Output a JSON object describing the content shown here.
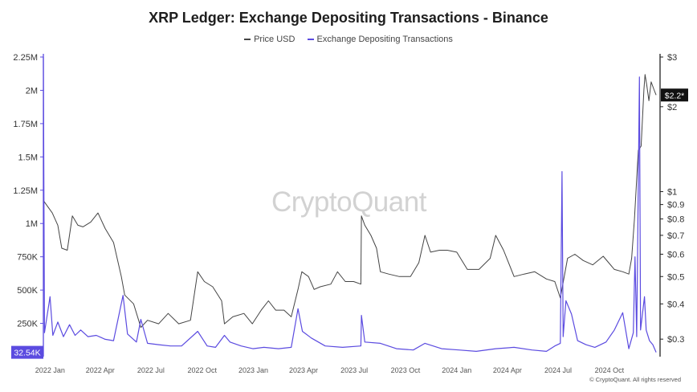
{
  "chart_data": {
    "type": "line",
    "title": "XRP Ledger: Exchange Depositing Transactions - Binance",
    "watermark": "CryptoQuant",
    "copyright": "© CryptoQuant. All rights reserved",
    "legend_position": "top-center",
    "grid": false,
    "x_range": [
      "2021-12-20",
      "2024-12-31"
    ],
    "x_ticks": [
      {
        "date": "2022-01-01",
        "label": "2022 Jan"
      },
      {
        "date": "2022-04-01",
        "label": "2022 Apr"
      },
      {
        "date": "2022-07-01",
        "label": "2022 Jul"
      },
      {
        "date": "2022-10-01",
        "label": "2022 Oct"
      },
      {
        "date": "2023-01-01",
        "label": "2023 Jan"
      },
      {
        "date": "2023-04-01",
        "label": "2023 Apr"
      },
      {
        "date": "2023-07-01",
        "label": "2023 Jul"
      },
      {
        "date": "2023-10-01",
        "label": "2023 Oct"
      },
      {
        "date": "2024-01-01",
        "label": "2024 Jan"
      },
      {
        "date": "2024-04-01",
        "label": "2024 Apr"
      },
      {
        "date": "2024-07-01",
        "label": "2024 Jul"
      },
      {
        "date": "2024-10-01",
        "label": "2024 Oct"
      }
    ],
    "y_left": {
      "range": [
        0,
        2250000
      ],
      "ticks": [
        {
          "value": 250000,
          "label": "250K"
        },
        {
          "value": 500000,
          "label": "500K"
        },
        {
          "value": 750000,
          "label": "750K"
        },
        {
          "value": 1000000,
          "label": "1M"
        },
        {
          "value": 1250000,
          "label": "1.25M"
        },
        {
          "value": 1500000,
          "label": "1.5M"
        },
        {
          "value": 1750000,
          "label": "1.75M"
        },
        {
          "value": 2000000,
          "label": "2M"
        },
        {
          "value": 2250000,
          "label": "2.25M"
        }
      ]
    },
    "y_right": {
      "scale": "log",
      "range": [
        0.26,
        3
      ],
      "ticks": [
        {
          "value": 0.3,
          "label": "$0.3"
        },
        {
          "value": 0.4,
          "label": "$0.4"
        },
        {
          "value": 0.5,
          "label": "$0.5"
        },
        {
          "value": 0.6,
          "label": "$0.6"
        },
        {
          "value": 0.7,
          "label": "$0.7"
        },
        {
          "value": 0.8,
          "label": "$0.8"
        },
        {
          "value": 0.9,
          "label": "$0.9"
        },
        {
          "value": 1,
          "label": "$1"
        },
        {
          "value": 2,
          "label": "$2"
        },
        {
          "value": 3,
          "label": "$3"
        }
      ]
    },
    "badges": {
      "left": {
        "label": "32.54K",
        "value": 32540,
        "color": "#5b4be0"
      },
      "right": {
        "label": "$2.2*",
        "value": 2.2,
        "color": "#111111"
      }
    },
    "series": [
      {
        "name": "Price USD",
        "axis": "right",
        "color": "#444444",
        "points": [
          [
            "2021-12-20",
            0.93
          ],
          [
            "2022-01-05",
            0.84
          ],
          [
            "2022-01-15",
            0.76
          ],
          [
            "2022-01-22",
            0.63
          ],
          [
            "2022-02-01",
            0.62
          ],
          [
            "2022-02-10",
            0.82
          ],
          [
            "2022-02-20",
            0.76
          ],
          [
            "2022-03-01",
            0.75
          ],
          [
            "2022-03-15",
            0.78
          ],
          [
            "2022-03-28",
            0.84
          ],
          [
            "2022-04-10",
            0.74
          ],
          [
            "2022-04-25",
            0.66
          ],
          [
            "2022-05-09",
            0.5
          ],
          [
            "2022-05-15",
            0.43
          ],
          [
            "2022-05-31",
            0.4
          ],
          [
            "2022-06-13",
            0.33
          ],
          [
            "2022-06-25",
            0.35
          ],
          [
            "2022-07-15",
            0.34
          ],
          [
            "2022-08-01",
            0.37
          ],
          [
            "2022-08-20",
            0.34
          ],
          [
            "2022-09-10",
            0.35
          ],
          [
            "2022-09-23",
            0.52
          ],
          [
            "2022-10-05",
            0.48
          ],
          [
            "2022-10-20",
            0.46
          ],
          [
            "2022-11-05",
            0.41
          ],
          [
            "2022-11-10",
            0.34
          ],
          [
            "2022-11-25",
            0.36
          ],
          [
            "2022-12-15",
            0.37
          ],
          [
            "2022-12-30",
            0.34
          ],
          [
            "2023-01-15",
            0.38
          ],
          [
            "2023-01-28",
            0.41
          ],
          [
            "2023-02-10",
            0.38
          ],
          [
            "2023-02-25",
            0.38
          ],
          [
            "2023-03-10",
            0.36
          ],
          [
            "2023-03-22",
            0.45
          ],
          [
            "2023-03-29",
            0.52
          ],
          [
            "2023-04-10",
            0.5
          ],
          [
            "2023-04-20",
            0.45
          ],
          [
            "2023-05-01",
            0.46
          ],
          [
            "2023-05-20",
            0.47
          ],
          [
            "2023-06-01",
            0.52
          ],
          [
            "2023-06-15",
            0.48
          ],
          [
            "2023-06-30",
            0.48
          ],
          [
            "2023-07-13",
            0.47
          ],
          [
            "2023-07-14",
            0.82
          ],
          [
            "2023-07-20",
            0.76
          ],
          [
            "2023-07-31",
            0.7
          ],
          [
            "2023-08-10",
            0.63
          ],
          [
            "2023-08-17",
            0.52
          ],
          [
            "2023-09-01",
            0.51
          ],
          [
            "2023-09-20",
            0.5
          ],
          [
            "2023-10-10",
            0.5
          ],
          [
            "2023-10-25",
            0.56
          ],
          [
            "2023-11-05",
            0.7
          ],
          [
            "2023-11-15",
            0.61
          ],
          [
            "2023-12-01",
            0.62
          ],
          [
            "2023-12-15",
            0.62
          ],
          [
            "2024-01-01",
            0.61
          ],
          [
            "2024-01-20",
            0.53
          ],
          [
            "2024-02-10",
            0.53
          ],
          [
            "2024-03-01",
            0.58
          ],
          [
            "2024-03-11",
            0.7
          ],
          [
            "2024-03-25",
            0.62
          ],
          [
            "2024-04-13",
            0.5
          ],
          [
            "2024-05-01",
            0.51
          ],
          [
            "2024-05-20",
            0.52
          ],
          [
            "2024-06-10",
            0.49
          ],
          [
            "2024-06-25",
            0.48
          ],
          [
            "2024-07-05",
            0.42
          ],
          [
            "2024-07-18",
            0.58
          ],
          [
            "2024-07-31",
            0.6
          ],
          [
            "2024-08-15",
            0.57
          ],
          [
            "2024-09-01",
            0.55
          ],
          [
            "2024-09-20",
            0.59
          ],
          [
            "2024-10-10",
            0.53
          ],
          [
            "2024-10-25",
            0.52
          ],
          [
            "2024-11-05",
            0.51
          ],
          [
            "2024-11-10",
            0.58
          ],
          [
            "2024-11-15",
            0.8
          ],
          [
            "2024-11-22",
            1.4
          ],
          [
            "2024-11-27",
            1.45
          ],
          [
            "2024-12-02",
            2.3
          ],
          [
            "2024-12-04",
            2.6
          ],
          [
            "2024-12-07",
            2.4
          ],
          [
            "2024-12-11",
            2.1
          ],
          [
            "2024-12-15",
            2.45
          ],
          [
            "2024-12-20",
            2.3
          ],
          [
            "2024-12-24",
            2.2
          ]
        ]
      },
      {
        "name": "Exchange Depositing Transactions",
        "axis": "left",
        "color": "#5b4be0",
        "points": [
          [
            "2021-12-20",
            2250000
          ],
          [
            "2021-12-22",
            180000
          ],
          [
            "2022-01-01",
            450000
          ],
          [
            "2022-01-06",
            160000
          ],
          [
            "2022-01-15",
            260000
          ],
          [
            "2022-01-25",
            150000
          ],
          [
            "2022-02-05",
            240000
          ],
          [
            "2022-02-15",
            160000
          ],
          [
            "2022-02-25",
            200000
          ],
          [
            "2022-03-10",
            150000
          ],
          [
            "2022-03-25",
            160000
          ],
          [
            "2022-04-10",
            130000
          ],
          [
            "2022-04-25",
            120000
          ],
          [
            "2022-05-12",
            460000
          ],
          [
            "2022-05-20",
            170000
          ],
          [
            "2022-06-05",
            110000
          ],
          [
            "2022-06-13",
            280000
          ],
          [
            "2022-06-25",
            100000
          ],
          [
            "2022-07-15",
            90000
          ],
          [
            "2022-08-05",
            80000
          ],
          [
            "2022-08-25",
            80000
          ],
          [
            "2022-09-23",
            190000
          ],
          [
            "2022-10-10",
            80000
          ],
          [
            "2022-10-25",
            70000
          ],
          [
            "2022-11-10",
            160000
          ],
          [
            "2022-11-20",
            110000
          ],
          [
            "2022-12-10",
            80000
          ],
          [
            "2022-12-31",
            60000
          ],
          [
            "2023-01-20",
            70000
          ],
          [
            "2023-02-15",
            60000
          ],
          [
            "2023-03-10",
            70000
          ],
          [
            "2023-03-22",
            360000
          ],
          [
            "2023-03-30",
            190000
          ],
          [
            "2023-04-15",
            140000
          ],
          [
            "2023-05-10",
            80000
          ],
          [
            "2023-06-10",
            70000
          ],
          [
            "2023-07-13",
            80000
          ],
          [
            "2023-07-14",
            310000
          ],
          [
            "2023-07-20",
            110000
          ],
          [
            "2023-08-17",
            100000
          ],
          [
            "2023-09-15",
            60000
          ],
          [
            "2023-10-15",
            50000
          ],
          [
            "2023-11-05",
            100000
          ],
          [
            "2023-12-05",
            60000
          ],
          [
            "2024-01-05",
            50000
          ],
          [
            "2024-02-05",
            40000
          ],
          [
            "2024-03-11",
            60000
          ],
          [
            "2024-04-13",
            70000
          ],
          [
            "2024-05-15",
            50000
          ],
          [
            "2024-06-10",
            40000
          ],
          [
            "2024-06-25",
            80000
          ],
          [
            "2024-07-05",
            100000
          ],
          [
            "2024-07-08",
            1390000
          ],
          [
            "2024-07-10",
            150000
          ],
          [
            "2024-07-15",
            420000
          ],
          [
            "2024-07-25",
            320000
          ],
          [
            "2024-08-05",
            120000
          ],
          [
            "2024-08-20",
            90000
          ],
          [
            "2024-09-05",
            70000
          ],
          [
            "2024-09-25",
            110000
          ],
          [
            "2024-10-10",
            200000
          ],
          [
            "2024-10-25",
            330000
          ],
          [
            "2024-11-05",
            60000
          ],
          [
            "2024-11-13",
            180000
          ],
          [
            "2024-11-16",
            750000
          ],
          [
            "2024-11-19",
            150000
          ],
          [
            "2024-11-24",
            2100000
          ],
          [
            "2024-11-26",
            200000
          ],
          [
            "2024-12-03",
            450000
          ],
          [
            "2024-12-06",
            200000
          ],
          [
            "2024-12-12",
            120000
          ],
          [
            "2024-12-18",
            90000
          ],
          [
            "2024-12-24",
            32540
          ]
        ]
      }
    ]
  }
}
